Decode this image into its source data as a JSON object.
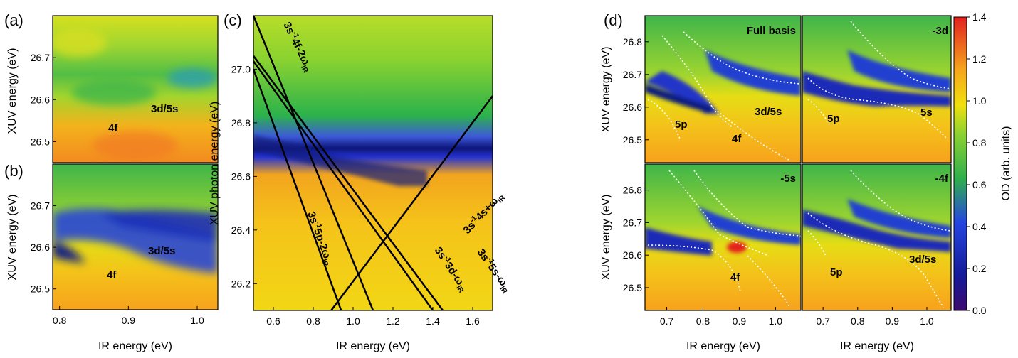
{
  "colors": {
    "orange": "#f79a1e",
    "yellow": "#f3dd10",
    "lime": "#b9dc2a",
    "green": "#3fb54a",
    "blue": "#2030cc",
    "navy": "#0d1a7e",
    "red": "#e4241f"
  },
  "chart_data": [
    {
      "panel": "(a)",
      "type": "heatmap",
      "ylabel": "XUV energy (eV)",
      "xlabel": "",
      "xlim": [
        0.79,
        1.03
      ],
      "ylim": [
        26.45,
        26.8
      ],
      "yticks": [
        "26.5",
        "26.6",
        "26.7"
      ],
      "annotations": [
        "4f",
        "3d/5s"
      ]
    },
    {
      "panel": "(b)",
      "type": "heatmap",
      "ylabel": "XUV energy (eV)",
      "xlabel": "IR energy (eV)",
      "xlim": [
        0.79,
        1.03
      ],
      "ylim": [
        26.45,
        26.8
      ],
      "xticks": [
        "0.8",
        "0.9",
        "1.0"
      ],
      "yticks": [
        "26.5",
        "26.6",
        "26.7"
      ],
      "annotations": [
        "4f",
        "3d/5s"
      ]
    },
    {
      "panel": "(c)",
      "type": "heatmap",
      "ylabel": "XUV photon energy (eV)",
      "xlabel": "IR energy (eV)",
      "xlim": [
        0.5,
        1.7
      ],
      "ylim": [
        26.1,
        27.2
      ],
      "xticks": [
        "0.6",
        "0.8",
        "1.0",
        "1.2",
        "1.4",
        "1.6"
      ],
      "yticks": [
        "26.2",
        "26.4",
        "26.6",
        "26.8",
        "27.0"
      ],
      "lines": [
        {
          "label": "3s-1 4f-2ωIR",
          "x": [
            0.5,
            1.1
          ],
          "y": [
            27.2,
            26.1
          ]
        },
        {
          "label": "3s-1 5p-2ωIR",
          "x": [
            0.5,
            0.94
          ],
          "y": [
            27.0,
            26.1
          ]
        },
        {
          "label": "3s-1 3d-ωIR",
          "x": [
            0.5,
            1.4
          ],
          "y": [
            27.03,
            26.1
          ]
        },
        {
          "label": "3s-1 5s-ωIR",
          "x": [
            0.5,
            1.45
          ],
          "y": [
            27.05,
            26.1
          ]
        },
        {
          "label": "3s-1 4s+ωIR",
          "x": [
            0.89,
            1.7
          ],
          "y": [
            26.1,
            26.9
          ]
        }
      ],
      "annotations": [
        "3s⁻¹4f-2ωIR",
        "3s⁻¹5p-2ωIR",
        "3s⁻¹3d-ωIR",
        "3s⁻¹5s-ωIR",
        "3s⁻¹4s+ωIR"
      ]
    },
    {
      "panel": "(d)",
      "type": "heatmap",
      "ylabel": "XUV energy (eV)",
      "xlabel": "IR energy (eV)",
      "xlim": [
        0.64,
        1.07
      ],
      "ylim": [
        26.43,
        26.88
      ],
      "xticks": [
        "0.7",
        "0.8",
        "0.9",
        "1.0"
      ],
      "yticks": [
        "26.5",
        "26.6",
        "26.7",
        "26.8"
      ],
      "subpanels": [
        {
          "title": "Full basis",
          "annotations": [
            "5p",
            "4f",
            "3d/5s"
          ]
        },
        {
          "title": "-3d",
          "annotations": [
            "5p",
            "5s"
          ]
        },
        {
          "title": "-5s",
          "annotations": [
            "4f"
          ]
        },
        {
          "title": "-4f",
          "annotations": [
            "5p",
            "3d/5s"
          ]
        }
      ]
    },
    {
      "type": "colorbar",
      "label": "OD (arb. units)",
      "range": [
        0.0,
        1.4
      ],
      "ticks": [
        "0.0",
        "0.2",
        "0.4",
        "0.6",
        "0.8",
        "1.0",
        "1.2",
        "1.4"
      ]
    }
  ],
  "labels": {
    "a": "(a)",
    "b": "(b)",
    "c": "(c)",
    "d": "(d)",
    "xuv_energy": "XUV energy (eV)",
    "xuv_photon": "XUV photon energy (eV)",
    "ir_energy": "IR energy (eV)",
    "od": "OD (arb. units)",
    "ann_4f": "4f",
    "ann_3d5s": "3d/5s",
    "ann_5p": "5p",
    "ann_5s": "5s",
    "full_basis": "Full basis",
    "minus_3d": "-3d",
    "minus_5s": "-5s",
    "minus_4f": "-4f"
  }
}
